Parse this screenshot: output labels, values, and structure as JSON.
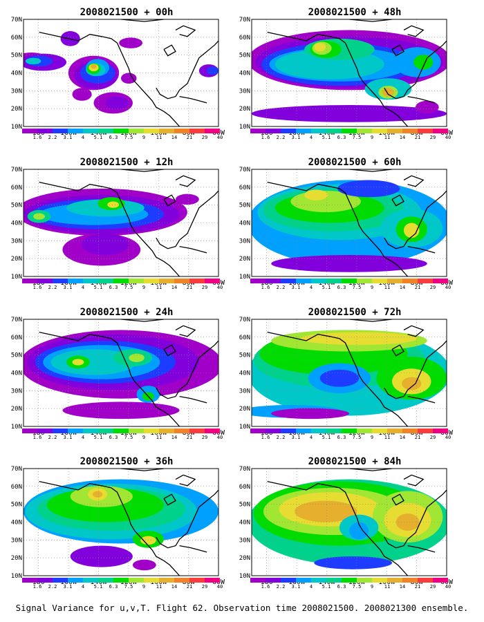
{
  "caption": "Signal Variance for u,v,T. Flight 62. Observation time 2008021500. 2008021300 ensemble.",
  "colors": [
    "#a000c8",
    "#8200dc",
    "#1e3cff",
    "#00a0ff",
    "#00c8c8",
    "#00d28c",
    "#00dc00",
    "#a0e632",
    "#e6dc32",
    "#e6af2d",
    "#f08228",
    "#fa3c3c",
    "#f00082"
  ],
  "chart_data": [
    {
      "type": "heatmap",
      "title": "2008021500 + 00h",
      "xticks": [
        "180",
        "160W",
        "140W",
        "120W",
        "100W",
        "80W",
        "60W"
      ],
      "yticks": [
        "10N",
        "20N",
        "30N",
        "40N",
        "50N",
        "60N",
        "70N"
      ],
      "xlim": [
        -190,
        -60
      ],
      "ylim": [
        10,
        70
      ],
      "colorbar_labels": [
        "1.6",
        "2.2",
        "3.1",
        "4",
        "5.1",
        "6.3",
        "7.5",
        "9",
        "11",
        "14",
        "21",
        "29",
        "40"
      ]
    },
    {
      "type": "heatmap",
      "title": "2008021500 + 48h",
      "xticks": [
        "180",
        "160W",
        "140W",
        "120W",
        "100W",
        "80W",
        "60W"
      ],
      "yticks": [
        "10N",
        "20N",
        "30N",
        "40N",
        "50N",
        "60N",
        "70N"
      ],
      "xlim": [
        -190,
        -60
      ],
      "ylim": [
        10,
        70
      ],
      "colorbar_labels": [
        "1.6",
        "2.2",
        "3.1",
        "4",
        "5.1",
        "6.3",
        "7.5",
        "9",
        "11",
        "14",
        "21",
        "29",
        "40"
      ]
    },
    {
      "type": "heatmap",
      "title": "2008021500 + 12h",
      "xticks": [
        "180",
        "160W",
        "140W",
        "120W",
        "100W",
        "80W",
        "60W"
      ],
      "yticks": [
        "10N",
        "20N",
        "30N",
        "40N",
        "50N",
        "60N",
        "70N"
      ],
      "xlim": [
        -190,
        -60
      ],
      "ylim": [
        10,
        70
      ],
      "colorbar_labels": [
        "1.6",
        "2.2",
        "3.1",
        "4",
        "5.1",
        "6.3",
        "7.5",
        "9",
        "11",
        "14",
        "21",
        "29",
        "40"
      ]
    },
    {
      "type": "heatmap",
      "title": "2008021500 + 60h",
      "xticks": [
        "180",
        "160W",
        "140W",
        "120W",
        "100W",
        "80W",
        "60W"
      ],
      "yticks": [
        "10N",
        "20N",
        "30N",
        "40N",
        "50N",
        "60N",
        "70N"
      ],
      "xlim": [
        -190,
        -60
      ],
      "ylim": [
        10,
        70
      ],
      "colorbar_labels": [
        "1.6",
        "2.2",
        "3.1",
        "4",
        "5.1",
        "6.3",
        "7.5",
        "9",
        "11",
        "14",
        "21",
        "29",
        "40"
      ]
    },
    {
      "type": "heatmap",
      "title": "2008021500 + 24h",
      "xticks": [
        "180",
        "160W",
        "140W",
        "120W",
        "100W",
        "80W",
        "60W"
      ],
      "yticks": [
        "10N",
        "20N",
        "30N",
        "40N",
        "50N",
        "60N",
        "70N"
      ],
      "xlim": [
        -190,
        -60
      ],
      "ylim": [
        10,
        70
      ],
      "colorbar_labels": [
        "1.6",
        "2.2",
        "3.1",
        "4",
        "5.1",
        "6.3",
        "7.5",
        "9",
        "11",
        "14",
        "21",
        "29",
        "40"
      ]
    },
    {
      "type": "heatmap",
      "title": "2008021500 + 72h",
      "xticks": [
        "180",
        "160W",
        "140W",
        "120W",
        "100W",
        "80W",
        "60W"
      ],
      "yticks": [
        "10N",
        "20N",
        "30N",
        "40N",
        "50N",
        "60N",
        "70N"
      ],
      "xlim": [
        -190,
        -60
      ],
      "ylim": [
        10,
        70
      ],
      "colorbar_labels": [
        "1.6",
        "2.2",
        "3.1",
        "4",
        "5.1",
        "6.3",
        "7.5",
        "9",
        "11",
        "14",
        "21",
        "29",
        "40"
      ]
    },
    {
      "type": "heatmap",
      "title": "2008021500 + 36h",
      "xticks": [
        "180",
        "160W",
        "140W",
        "120W",
        "100W",
        "80W",
        "60W"
      ],
      "yticks": [
        "10N",
        "20N",
        "30N",
        "40N",
        "50N",
        "60N",
        "70N"
      ],
      "xlim": [
        -190,
        -60
      ],
      "ylim": [
        10,
        70
      ],
      "colorbar_labels": [
        "1.6",
        "2.2",
        "3.1",
        "4",
        "5.1",
        "6.3",
        "7.5",
        "9",
        "11",
        "14",
        "21",
        "29",
        "40"
      ]
    },
    {
      "type": "heatmap",
      "title": "2008021500 + 84h",
      "xticks": [
        "180",
        "160W",
        "140W",
        "120W",
        "100W",
        "80W",
        "60W"
      ],
      "yticks": [
        "10N",
        "20N",
        "30N",
        "40N",
        "50N",
        "60N",
        "70N"
      ],
      "xlim": [
        -190,
        -60
      ],
      "ylim": [
        10,
        70
      ],
      "colorbar_labels": [
        "1.6",
        "2.2",
        "3.1",
        "4",
        "5.1",
        "6.3",
        "7.5",
        "9",
        "11",
        "14",
        "21",
        "29",
        "40"
      ]
    }
  ]
}
